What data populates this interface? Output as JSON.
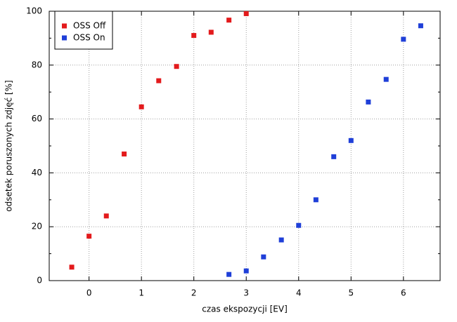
{
  "chart_data": {
    "type": "scatter",
    "xlabel": "czas ekspozycji [EV]",
    "ylabel": "odsetek poruszonych zdjęć [%]",
    "series": [
      {
        "name": "OSS Off",
        "color": "#e31a1c",
        "x": [
          -0.33,
          0,
          0.33,
          0.67,
          1,
          1.33,
          1.67,
          2,
          2.33,
          2.67,
          3
        ],
        "values": [
          5,
          16.5,
          24,
          47,
          64.5,
          74.2,
          79.5,
          91,
          92.2,
          96.7,
          99.1
        ]
      },
      {
        "name": "OSS On",
        "color": "#1f3fd8",
        "x": [
          2.67,
          3,
          3.33,
          3.67,
          4,
          4.33,
          4.67,
          5,
          5.33,
          5.67,
          6,
          6.33
        ],
        "values": [
          2.3,
          3.6,
          8.8,
          15.1,
          20.5,
          30,
          46,
          52,
          66.3,
          74.7,
          89.6,
          94.6
        ]
      }
    ],
    "xlim": [
      -0.76,
      6.7
    ],
    "xticks": [
      0,
      1,
      2,
      3,
      4,
      5,
      6
    ],
    "ylim": [
      0,
      100
    ],
    "yticks": [
      0,
      20,
      40,
      60,
      80,
      100
    ],
    "yminorticks": [
      10,
      30,
      50,
      70,
      90
    ],
    "grid": true,
    "legend": "top-left"
  }
}
